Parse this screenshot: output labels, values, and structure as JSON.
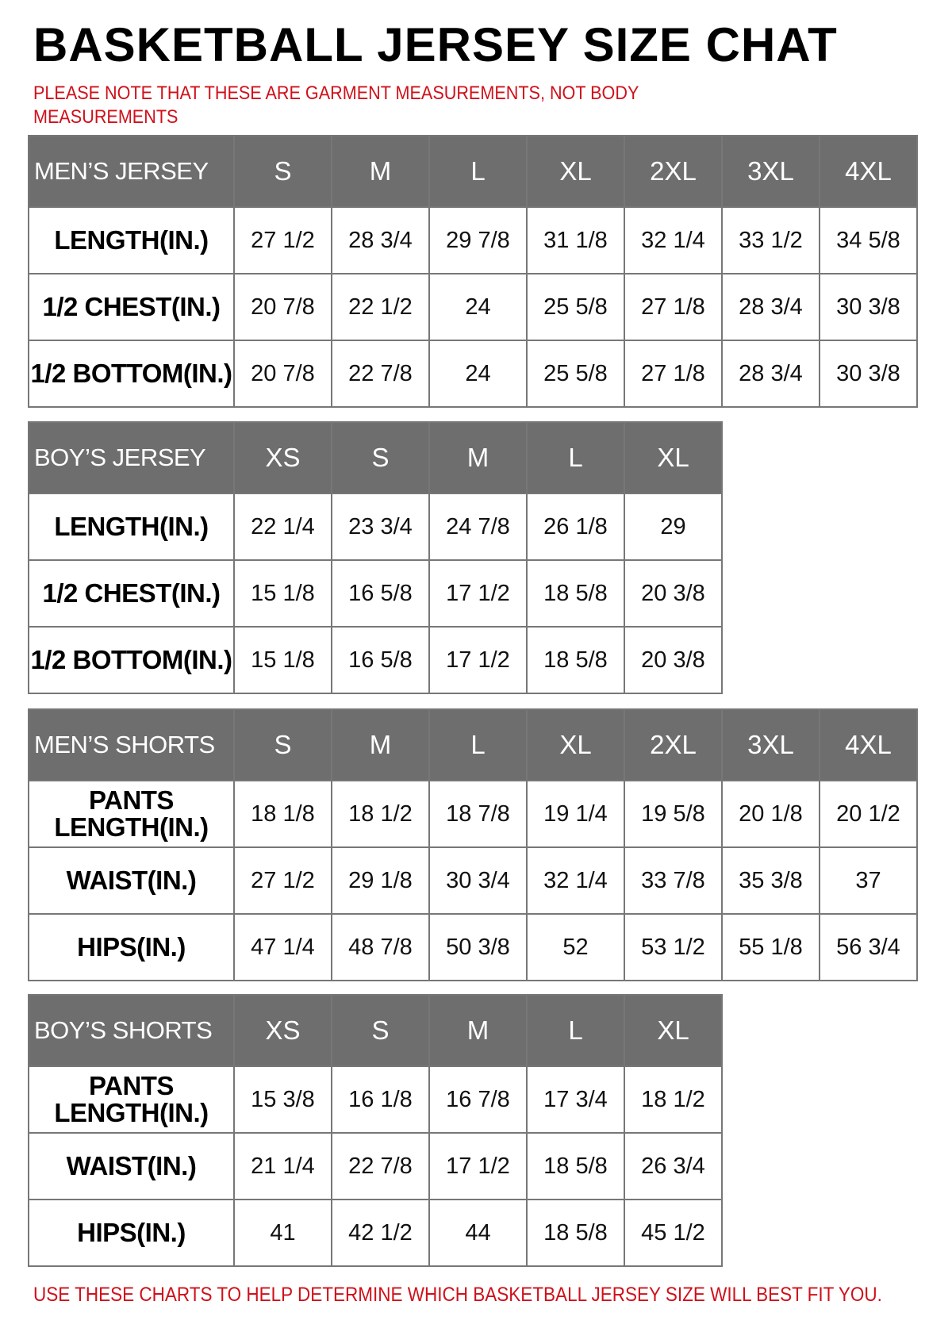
{
  "title": "BASKETBALL JERSEY SIZE CHAT",
  "note": "PLEASE NOTE THAT THESE ARE GARMENT MEASUREMENTS, NOT BODY MEASUREMENTS",
  "footer": "USE THESE CHARTS TO HELP DETERMINE WHICH BASKETBALL JERSEY SIZE WILL BEST FIT YOU.",
  "colors": {
    "header_bg": "#6e6e6e",
    "note_red": "#d0101a",
    "border": "#777777"
  },
  "tables": [
    {
      "title": "MEN’S JERSEY",
      "sizes": [
        "S",
        "M",
        "L",
        "XL",
        "2XL",
        "3XL",
        "4XL"
      ],
      "rows": [
        {
          "label": "LENGTH(IN.)",
          "values": [
            "27 1/2",
            "28 3/4",
            "29 7/8",
            "31 1/8",
            "32 1/4",
            "33 1/2",
            "34 5/8"
          ]
        },
        {
          "label": "1/2 CHEST(IN.)",
          "values": [
            "20 7/8",
            "22 1/2",
            "24",
            "25 5/8",
            "27 1/8",
            "28 3/4",
            "30 3/8"
          ]
        },
        {
          "label": "1/2 BOTTOM(IN.)",
          "values": [
            "20 7/8",
            "22 7/8",
            "24",
            "25 5/8",
            "27 1/8",
            "28 3/4",
            "30 3/8"
          ]
        }
      ]
    },
    {
      "title": "BOY’S JERSEY",
      "sizes": [
        "XS",
        "S",
        "M",
        "L",
        "XL"
      ],
      "rows": [
        {
          "label": "LENGTH(IN.)",
          "values": [
            "22 1/4",
            "23 3/4",
            "24 7/8",
            "26 1/8",
            "29"
          ]
        },
        {
          "label": "1/2 CHEST(IN.)",
          "values": [
            "15 1/8",
            "16 5/8",
            "17 1/2",
            "18 5/8",
            "20 3/8"
          ]
        },
        {
          "label": "1/2 BOTTOM(IN.)",
          "values": [
            "15 1/8",
            "16 5/8",
            "17 1/2",
            "18 5/8",
            "20 3/8"
          ]
        }
      ]
    },
    {
      "title": "MEN’S SHORTS",
      "sizes": [
        "S",
        "M",
        "L",
        "XL",
        "2XL",
        "3XL",
        "4XL"
      ],
      "rows": [
        {
          "label": "PANTS LENGTH(IN.)",
          "values": [
            "18 1/8",
            "18 1/2",
            "18 7/8",
            "19 1/4",
            "19 5/8",
            "20 1/8",
            "20 1/2"
          ]
        },
        {
          "label": "WAIST(IN.)",
          "values": [
            "27 1/2",
            "29 1/8",
            "30 3/4",
            "32 1/4",
            "33 7/8",
            "35 3/8",
            "37"
          ]
        },
        {
          "label": "HIPS(IN.)",
          "values": [
            "47 1/4",
            "48 7/8",
            "50 3/8",
            "52",
            "53 1/2",
            "55 1/8",
            "56 3/4"
          ]
        }
      ]
    },
    {
      "title": "BOY’S SHORTS",
      "sizes": [
        "XS",
        "S",
        "M",
        "L",
        "XL"
      ],
      "rows": [
        {
          "label": "PANTS LENGTH(IN.)",
          "values": [
            "15 3/8",
            "16 1/8",
            "16 7/8",
            "17 3/4",
            "18 1/2"
          ]
        },
        {
          "label": "WAIST(IN.)",
          "values": [
            "21 1/4",
            "22 7/8",
            "17 1/2",
            "18 5/8",
            "26 3/4"
          ]
        },
        {
          "label": "HIPS(IN.)",
          "values": [
            "41",
            "42 1/2",
            "44",
            "18 5/8",
            "45 1/2"
          ]
        }
      ]
    }
  ]
}
